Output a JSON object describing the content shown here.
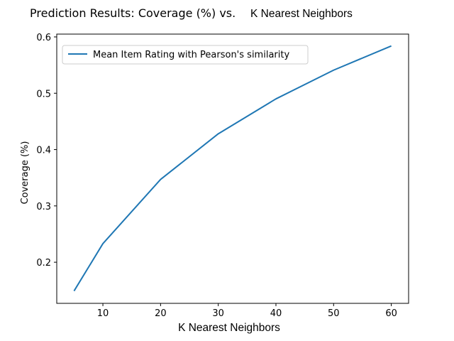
{
  "chart_data": {
    "type": "line",
    "title_part1": "Prediction Results: Coverage (%) vs.",
    "title_part2": "K Nearest Neighbors",
    "xlabel": "K Nearest Neighbors",
    "ylabel": "Coverage (%)",
    "xlim": [
      2,
      63
    ],
    "ylim": [
      0.127,
      0.605
    ],
    "xticks": [
      10,
      20,
      30,
      40,
      50,
      60
    ],
    "yticks": [
      0.2,
      0.3,
      0.4,
      0.5,
      0.6
    ],
    "ytick_labels": [
      "0.2",
      "0.3",
      "0.4",
      "0.5",
      "0.6"
    ],
    "grid": false,
    "legend_position": "upper-left",
    "series": [
      {
        "name": "Mean Item Rating with Pearson's similarity",
        "color": "#1f77b4",
        "x": [
          5,
          10,
          20,
          30,
          40,
          50,
          60
        ],
        "y": [
          0.149,
          0.233,
          0.347,
          0.428,
          0.49,
          0.541,
          0.584
        ]
      }
    ]
  }
}
